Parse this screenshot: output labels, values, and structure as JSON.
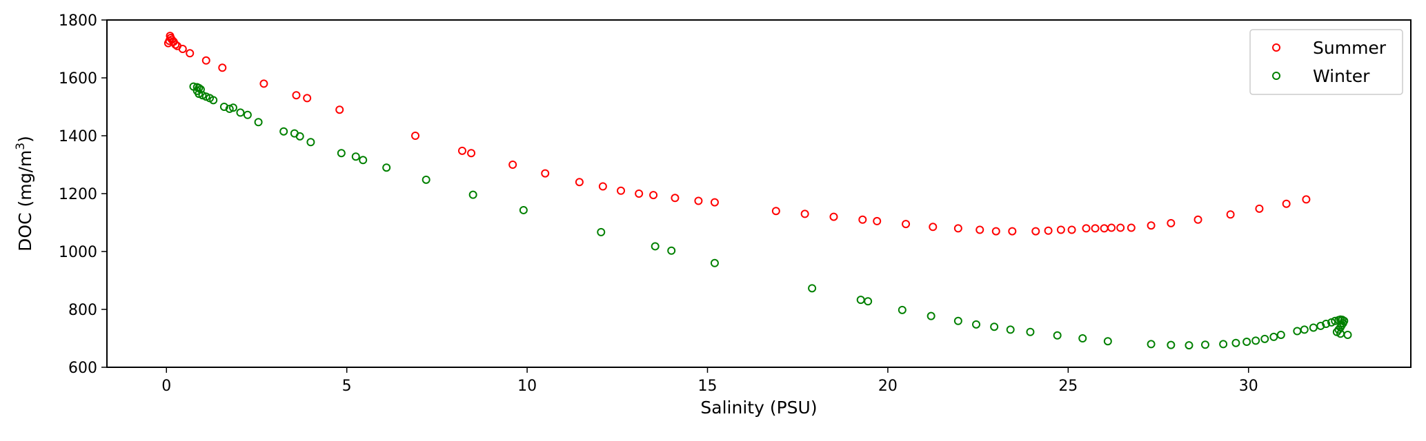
{
  "chart_data": {
    "type": "scatter",
    "title": "",
    "xlabel": "Salinity (PSU)",
    "ylabel_main": "DOC (mg/m",
    "ylabel_sup": "3",
    "ylabel_close": ")",
    "xlim": [
      -1.65,
      34.5
    ],
    "ylim": [
      600,
      1800
    ],
    "xticks": [
      0,
      5,
      10,
      15,
      20,
      25,
      30
    ],
    "xtick_labels": [
      "0",
      "5",
      "10",
      "15",
      "20",
      "25",
      "30"
    ],
    "yticks": [
      600,
      800,
      1000,
      1200,
      1400,
      1600,
      1800
    ],
    "ytick_labels": [
      "600",
      "800",
      "1000",
      "1200",
      "1400",
      "1600",
      "1800"
    ],
    "grid": false,
    "legend_position": "top-right",
    "series": [
      {
        "name": "Summer",
        "color": "#ff0000",
        "points": [
          [
            0.05,
            1720
          ],
          [
            0.08,
            1728
          ],
          [
            0.1,
            1745
          ],
          [
            0.12,
            1738
          ],
          [
            0.15,
            1732
          ],
          [
            0.2,
            1725
          ],
          [
            0.25,
            1715
          ],
          [
            0.3,
            1710
          ],
          [
            0.45,
            1700
          ],
          [
            0.65,
            1685
          ],
          [
            1.1,
            1660
          ],
          [
            1.55,
            1635
          ],
          [
            2.7,
            1580
          ],
          [
            3.6,
            1540
          ],
          [
            3.9,
            1530
          ],
          [
            4.8,
            1490
          ],
          [
            6.9,
            1400
          ],
          [
            8.2,
            1348
          ],
          [
            8.45,
            1340
          ],
          [
            9.6,
            1300
          ],
          [
            10.5,
            1270
          ],
          [
            11.45,
            1240
          ],
          [
            12.1,
            1225
          ],
          [
            12.6,
            1210
          ],
          [
            13.1,
            1200
          ],
          [
            13.5,
            1195
          ],
          [
            14.1,
            1185
          ],
          [
            14.75,
            1175
          ],
          [
            15.2,
            1170
          ],
          [
            16.9,
            1140
          ],
          [
            17.7,
            1130
          ],
          [
            18.5,
            1120
          ],
          [
            19.3,
            1110
          ],
          [
            19.7,
            1105
          ],
          [
            20.5,
            1095
          ],
          [
            21.25,
            1085
          ],
          [
            21.95,
            1080
          ],
          [
            22.55,
            1075
          ],
          [
            23.0,
            1070
          ],
          [
            23.45,
            1070
          ],
          [
            24.1,
            1070
          ],
          [
            24.45,
            1072
          ],
          [
            24.8,
            1075
          ],
          [
            25.1,
            1075
          ],
          [
            25.5,
            1080
          ],
          [
            25.75,
            1080
          ],
          [
            26.0,
            1080
          ],
          [
            26.2,
            1082
          ],
          [
            26.45,
            1082
          ],
          [
            26.75,
            1082
          ],
          [
            27.3,
            1090
          ],
          [
            27.85,
            1098
          ],
          [
            28.6,
            1110
          ],
          [
            29.5,
            1128
          ],
          [
            30.3,
            1148
          ],
          [
            31.05,
            1165
          ],
          [
            31.6,
            1180
          ]
        ]
      },
      {
        "name": "Winter",
        "color": "#008000",
        "points": [
          [
            0.75,
            1570
          ],
          [
            0.85,
            1568
          ],
          [
            0.9,
            1565
          ],
          [
            0.95,
            1560
          ],
          [
            0.85,
            1555
          ],
          [
            0.9,
            1545
          ],
          [
            1.0,
            1540
          ],
          [
            1.1,
            1535
          ],
          [
            1.2,
            1530
          ],
          [
            1.3,
            1523
          ],
          [
            1.6,
            1500
          ],
          [
            1.75,
            1493
          ],
          [
            1.85,
            1497
          ],
          [
            2.05,
            1480
          ],
          [
            2.25,
            1472
          ],
          [
            2.55,
            1447
          ],
          [
            3.25,
            1415
          ],
          [
            3.55,
            1408
          ],
          [
            3.7,
            1398
          ],
          [
            4.0,
            1378
          ],
          [
            4.85,
            1340
          ],
          [
            5.25,
            1328
          ],
          [
            5.45,
            1316
          ],
          [
            6.1,
            1290
          ],
          [
            7.2,
            1248
          ],
          [
            8.5,
            1196
          ],
          [
            9.9,
            1143
          ],
          [
            12.05,
            1067
          ],
          [
            13.55,
            1018
          ],
          [
            14.0,
            1003
          ],
          [
            15.2,
            960
          ],
          [
            17.9,
            873
          ],
          [
            19.25,
            833
          ],
          [
            19.45,
            828
          ],
          [
            20.4,
            798
          ],
          [
            21.2,
            777
          ],
          [
            21.95,
            760
          ],
          [
            22.45,
            748
          ],
          [
            22.95,
            740
          ],
          [
            23.4,
            730
          ],
          [
            23.95,
            722
          ],
          [
            24.7,
            710
          ],
          [
            25.4,
            700
          ],
          [
            26.1,
            690
          ],
          [
            27.3,
            680
          ],
          [
            27.85,
            677
          ],
          [
            28.35,
            676
          ],
          [
            28.8,
            678
          ],
          [
            29.3,
            680
          ],
          [
            29.65,
            684
          ],
          [
            29.95,
            688
          ],
          [
            30.2,
            692
          ],
          [
            30.45,
            698
          ],
          [
            30.7,
            705
          ],
          [
            30.9,
            712
          ],
          [
            31.35,
            725
          ],
          [
            31.55,
            730
          ],
          [
            31.8,
            737
          ],
          [
            32.0,
            743
          ],
          [
            32.15,
            750
          ],
          [
            32.3,
            755
          ],
          [
            32.4,
            760
          ],
          [
            32.5,
            763
          ],
          [
            32.55,
            765
          ],
          [
            32.6,
            764
          ],
          [
            32.65,
            760
          ],
          [
            32.62,
            752
          ],
          [
            32.58,
            745
          ],
          [
            32.55,
            738
          ],
          [
            32.5,
            730
          ],
          [
            32.45,
            722
          ],
          [
            32.55,
            716
          ],
          [
            32.75,
            712
          ]
        ]
      }
    ]
  }
}
